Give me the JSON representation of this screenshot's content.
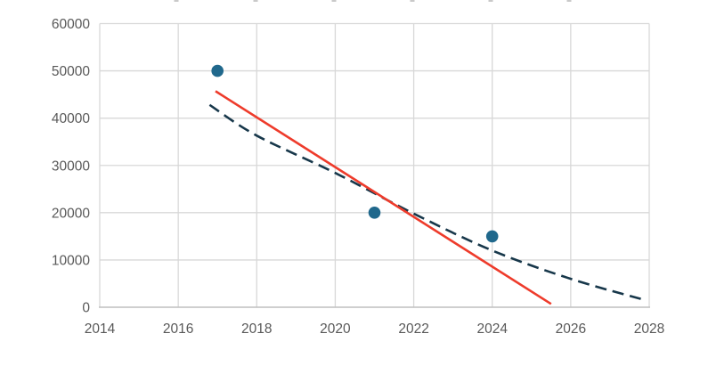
{
  "colors": {
    "background": "#ffffff",
    "gridline": "#d8d8d8",
    "axis_line": "#bfbfbf",
    "tick_label": "#595959",
    "scatter_point": "#20688c",
    "solid_trendline": "#ee3b2b",
    "dashed_trendline": "#17374a",
    "top_edge_fragment": "#c9c9c9"
  },
  "chart_data": {
    "type": "scatter",
    "title": "",
    "xlabel": "",
    "ylabel": "",
    "grid": true,
    "legend": false,
    "x_axis": {
      "range": [
        2014,
        2028
      ],
      "ticks": [
        2014,
        2016,
        2018,
        2020,
        2022,
        2024,
        2026,
        2028
      ]
    },
    "y_axis": {
      "range": [
        0,
        60000
      ],
      "ticks": [
        0,
        10000,
        20000,
        30000,
        40000,
        50000,
        60000
      ]
    },
    "series": [
      {
        "name": "observed-points",
        "kind": "scatter",
        "color_key": "scatter_point",
        "points": [
          [
            2017,
            50000
          ],
          [
            2021,
            20000
          ],
          [
            2024,
            15000
          ]
        ]
      },
      {
        "name": "linear-trendline",
        "kind": "line",
        "style": "solid",
        "color_key": "solid_trendline",
        "points": [
          [
            2016.95,
            45700
          ],
          [
            2025.5,
            700
          ]
        ]
      },
      {
        "name": "curved-trendline",
        "kind": "line",
        "style": "dashed",
        "color_key": "dashed_trendline",
        "points": [
          [
            2016.8,
            42800
          ],
          [
            2018,
            36300
          ],
          [
            2020,
            28400
          ],
          [
            2022,
            19800
          ],
          [
            2024,
            12000
          ],
          [
            2026,
            6000
          ],
          [
            2027.9,
            1500
          ]
        ]
      }
    ]
  }
}
